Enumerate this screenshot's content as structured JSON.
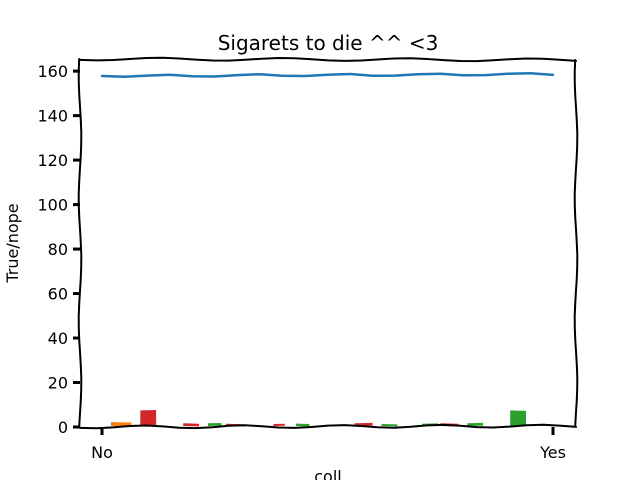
{
  "chart_data": {
    "type": "line",
    "style": "xkcd",
    "title": "Sigarets to die ^^ <3",
    "xlabel": "coll",
    "ylabel": "True/nope",
    "x_ticks": [
      "No",
      "Yes"
    ],
    "ylim": [
      0,
      165
    ],
    "y_ticks": [
      0,
      20,
      40,
      60,
      80,
      100,
      120,
      140,
      160
    ],
    "grid": false,
    "line_series": {
      "color": "#1f77b4",
      "points": [
        [
          0.0,
          157.8
        ],
        [
          0.05,
          157.5
        ],
        [
          0.1,
          158.0
        ],
        [
          0.15,
          158.4
        ],
        [
          0.2,
          157.7
        ],
        [
          0.25,
          157.6
        ],
        [
          0.3,
          158.2
        ],
        [
          0.35,
          158.6
        ],
        [
          0.4,
          157.9
        ],
        [
          0.45,
          157.8
        ],
        [
          0.5,
          158.4
        ],
        [
          0.55,
          158.7
        ],
        [
          0.6,
          157.9
        ],
        [
          0.65,
          158.0
        ],
        [
          0.7,
          158.6
        ],
        [
          0.75,
          158.8
        ],
        [
          0.8,
          158.1
        ],
        [
          0.85,
          158.2
        ],
        [
          0.9,
          158.8
        ],
        [
          0.95,
          159.0
        ],
        [
          1.0,
          158.3
        ]
      ]
    },
    "bars": [
      {
        "x": 0.02,
        "width": 0.045,
        "value": 1.8,
        "color": "#ff7f0e"
      },
      {
        "x": 0.085,
        "width": 0.035,
        "value": 7.0,
        "color": "#d62728"
      },
      {
        "x": 0.18,
        "width": 0.035,
        "value": 1.2,
        "color": "#d62728"
      },
      {
        "x": 0.235,
        "width": 0.03,
        "value": 1.2,
        "color": "#2ca02c"
      },
      {
        "x": 0.275,
        "width": 0.04,
        "value": 1.0,
        "color": "#d62728"
      },
      {
        "x": 0.38,
        "width": 0.025,
        "value": 0.5,
        "color": "#d62728"
      },
      {
        "x": 0.43,
        "width": 0.03,
        "value": 1.1,
        "color": "#2ca02c"
      },
      {
        "x": 0.56,
        "width": 0.04,
        "value": 1.2,
        "color": "#d62728"
      },
      {
        "x": 0.62,
        "width": 0.035,
        "value": 0.6,
        "color": "#2ca02c"
      },
      {
        "x": 0.71,
        "width": 0.035,
        "value": 1.0,
        "color": "#2ca02c"
      },
      {
        "x": 0.75,
        "width": 0.04,
        "value": 1.2,
        "color": "#d62728"
      },
      {
        "x": 0.81,
        "width": 0.035,
        "value": 1.2,
        "color": "#2ca02c"
      },
      {
        "x": 0.905,
        "width": 0.035,
        "value": 7.0,
        "color": "#2ca02c"
      },
      {
        "x": 0.965,
        "width": 0.02,
        "value": 0.9,
        "color": "#ff7f0e"
      }
    ]
  }
}
